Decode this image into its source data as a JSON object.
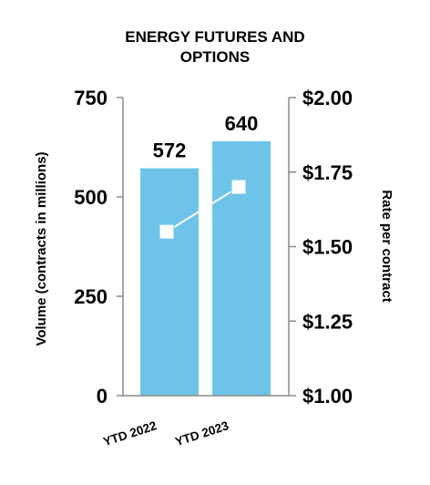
{
  "chart_data": {
    "type": "bar",
    "title_lines": [
      "ENERGY FUTURES AND",
      "OPTIONS"
    ],
    "categories": [
      "YTD 2022",
      "YTD 2023"
    ],
    "series": [
      {
        "type": "bar",
        "values": [
          572,
          640
        ]
      },
      {
        "type": "line",
        "values": [
          1.55,
          1.7
        ],
        "axis": "right"
      }
    ],
    "data_labels": [
      "572",
      "640"
    ],
    "ylabel": "Volume (contracts in millions)",
    "ylabel_right": "Rate per contract",
    "ylim": [
      0,
      750
    ],
    "ylim_right": [
      1.0,
      2.0
    ],
    "yticks": [
      0,
      250,
      500,
      750
    ],
    "yticks_right": [
      1.0,
      1.25,
      1.5,
      1.75,
      2.0
    ],
    "ytick_labels": [
      "0",
      "250",
      "500",
      "750"
    ],
    "ytick_labels_right": [
      "$1.00",
      "$1.25",
      "$1.50",
      "$1.75",
      "$2.00"
    ],
    "grid": false,
    "colors": {
      "bar": "#6ec4e8",
      "line": "#ffffff",
      "axis": "#8a8a8a"
    }
  }
}
